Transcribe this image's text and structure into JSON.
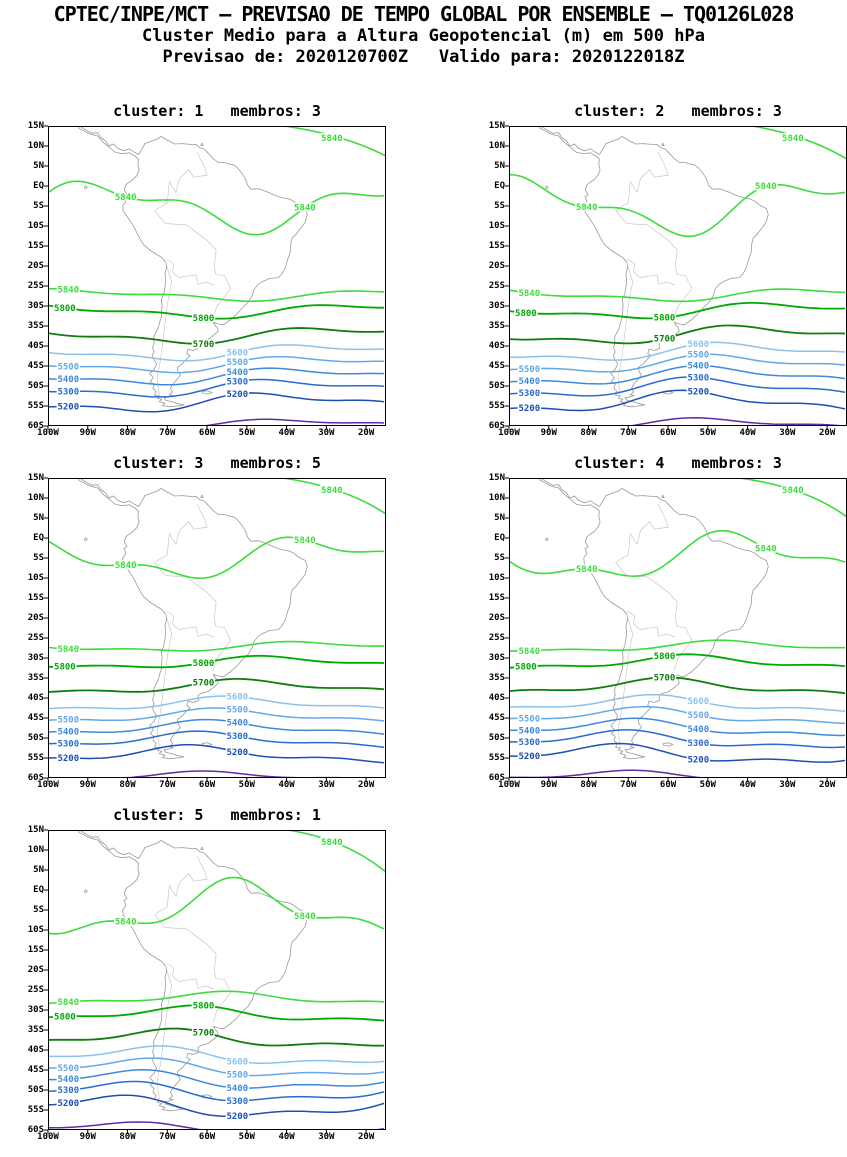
{
  "header": {
    "line1": "CPTEC/INPE/MCT — PREVISAO DE TEMPO GLOBAL POR ENSEMBLE — TQ0126L028",
    "line2": "Cluster Medio para a Altura Geopotencial (m) em 500 hPa",
    "line3": "Previsao de: 2020120700Z   Valido para: 2020122018Z"
  },
  "panels": [
    {
      "title": "cluster: 1   membros: 3",
      "cluster": 1,
      "membros": 3
    },
    {
      "title": "cluster: 2   membros: 3",
      "cluster": 2,
      "membros": 3
    },
    {
      "title": "cluster: 3   membros: 5",
      "cluster": 3,
      "membros": 5
    },
    {
      "title": "cluster: 4   membros: 3",
      "cluster": 4,
      "membros": 3
    },
    {
      "title": "cluster: 5   membros: 1",
      "cluster": 5,
      "membros": 1
    }
  ],
  "axes": {
    "lat_labels": [
      "15N",
      "10N",
      "5N",
      "EQ",
      "5S",
      "10S",
      "15S",
      "20S",
      "25S",
      "30S",
      "35S",
      "40S",
      "45S",
      "50S",
      "55S",
      "60S"
    ],
    "lon_labels": [
      "100W",
      "90W",
      "80W",
      "70W",
      "60W",
      "50W",
      "40W",
      "30W",
      "20W"
    ]
  },
  "chart_data": {
    "type": "heatmap",
    "subtype": "contour-map",
    "title": "Cluster Medio para a Altura Geopotencial (m) em 500 hPa",
    "source": "CPTEC/INPE/MCT — PREVISAO DE TEMPO GLOBAL POR ENSEMBLE — TQ0126L028",
    "forecast_init": "2020120700Z",
    "forecast_valid": "2020122018Z",
    "pressure_level": "500 hPa",
    "unit": "m",
    "region": {
      "lat_top": "15N",
      "lat_bottom": "60S",
      "lon_left": "100W",
      "lon_right_label": "20W"
    },
    "panels": [
      {
        "cluster": 1,
        "membros": 3
      },
      {
        "cluster": 2,
        "membros": 3
      },
      {
        "cluster": 3,
        "membros": 5
      },
      {
        "cluster": 4,
        "membros": 3
      },
      {
        "cluster": 5,
        "membros": 1
      }
    ],
    "contour_levels": [
      {
        "label": "5840",
        "value": 5840,
        "color": "#3ddc3d"
      },
      {
        "label": "5800",
        "value": 5800,
        "color": "#00a800"
      },
      {
        "label": "5700",
        "value": 5700,
        "color": "#0e7d0e"
      },
      {
        "label": "5600",
        "value": 5600,
        "color": "#8cc3ee"
      },
      {
        "label": "5500",
        "value": 5500,
        "color": "#63a8e8"
      },
      {
        "label": "5400",
        "value": 5400,
        "color": "#3f89dd"
      },
      {
        "label": "5300",
        "value": 5300,
        "color": "#2a6bcd"
      },
      {
        "label": "5200",
        "value": 5200,
        "color": "#1c4eb4"
      },
      {
        "label": "",
        "value": null,
        "color": "#5e2ca5"
      }
    ],
    "coastline_color": "#9a9a9a",
    "border_color": "#c0c0c0",
    "frame_color": "#000000"
  }
}
